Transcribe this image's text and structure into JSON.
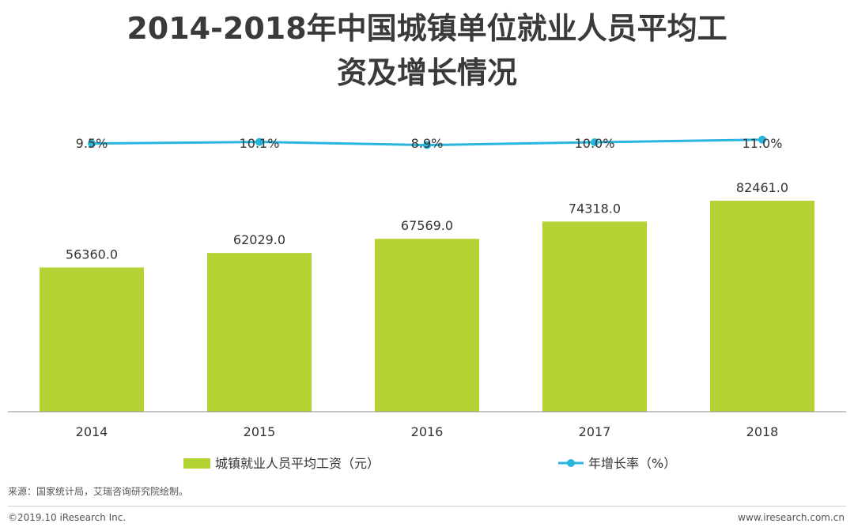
{
  "title_line1": "2014-2018年中国城镇单位就业人员平均工",
  "title_line2": "资及增长情况",
  "chart_data": {
    "type": "bar",
    "categories": [
      "2014",
      "2015",
      "2016",
      "2017",
      "2018"
    ],
    "series": [
      {
        "name": "城镇就业人员平均工资（元）",
        "type": "bar",
        "values": [
          56360.0,
          62029.0,
          67569.0,
          74318.0,
          82461.0
        ],
        "labels": [
          "56360.0",
          "62029.0",
          "67569.0",
          "74318.0",
          "82461.0"
        ],
        "color": "#b3d234"
      },
      {
        "name": "年增长率（%）",
        "type": "line",
        "values": [
          9.5,
          10.1,
          8.9,
          10.0,
          11.0
        ],
        "labels": [
          "9.5%",
          "10.1%",
          "8.9%",
          "10.0%",
          "11.0%"
        ],
        "color": "#29b6de"
      }
    ],
    "bar_ylim": [
      0,
      85000
    ],
    "line_ylim": [
      0,
      12
    ],
    "legend": "bottom"
  },
  "footer": {
    "source": "来源：国家统计局，艾瑞咨询研究院绘制。",
    "copyright": "©2019.10 iResearch Inc.",
    "website": "www.iresearch.com.cn"
  }
}
